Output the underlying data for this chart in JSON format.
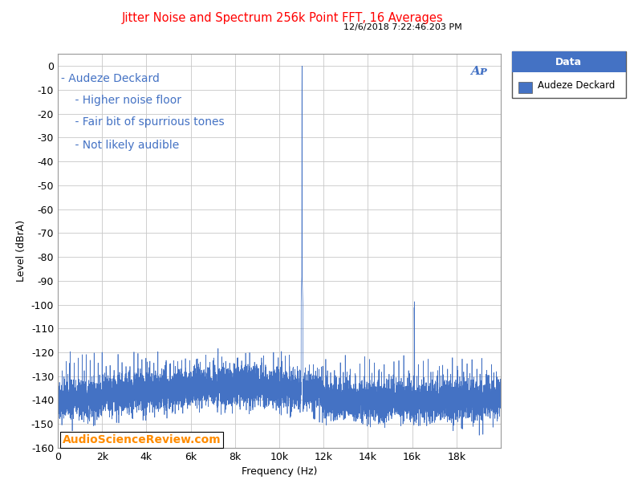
{
  "title": "Jitter Noise and Spectrum 256k Point FFT, 16 Averages",
  "subtitle": "12/6/2018 7:22:46.203 PM",
  "title_color": "#FF0000",
  "subtitle_color": "#000000",
  "xlabel": "Frequency (Hz)",
  "ylabel": "Level (dBrA)",
  "xlim": [
    0,
    20000
  ],
  "ylim": [
    -160,
    5
  ],
  "yticks": [
    0,
    -10,
    -20,
    -30,
    -40,
    -50,
    -60,
    -70,
    -80,
    -90,
    -100,
    -110,
    -120,
    -130,
    -140,
    -150,
    -160
  ],
  "xticks": [
    0,
    2000,
    4000,
    6000,
    8000,
    10000,
    12000,
    14000,
    16000,
    18000
  ],
  "xticklabels": [
    "0",
    "2k",
    "4k",
    "6k",
    "8k",
    "10k",
    "12k",
    "14k",
    "16k",
    "18k"
  ],
  "line_color": "#4472C4",
  "noise_floor": -140,
  "noise_std": 4,
  "spike_freq": 11025,
  "spike_level": 0,
  "spike2_freq": 16100,
  "spike2_level": -114,
  "annotations": [
    "- Audeze Deckard",
    "    - Higher noise floor",
    "    - Fair bit of spurrious tones",
    "    - Not likely audible"
  ],
  "annotation_color": "#4472C4",
  "watermark": "AudioScienceReview.com",
  "watermark_color": "#FF8C00",
  "legend_title": "Data",
  "legend_label": "Audeze Deckard",
  "background_color": "#FFFFFF",
  "grid_color": "#C8C8C8",
  "ap_logo_color": "#4472C4",
  "fig_width": 8.0,
  "fig_height": 6.13
}
